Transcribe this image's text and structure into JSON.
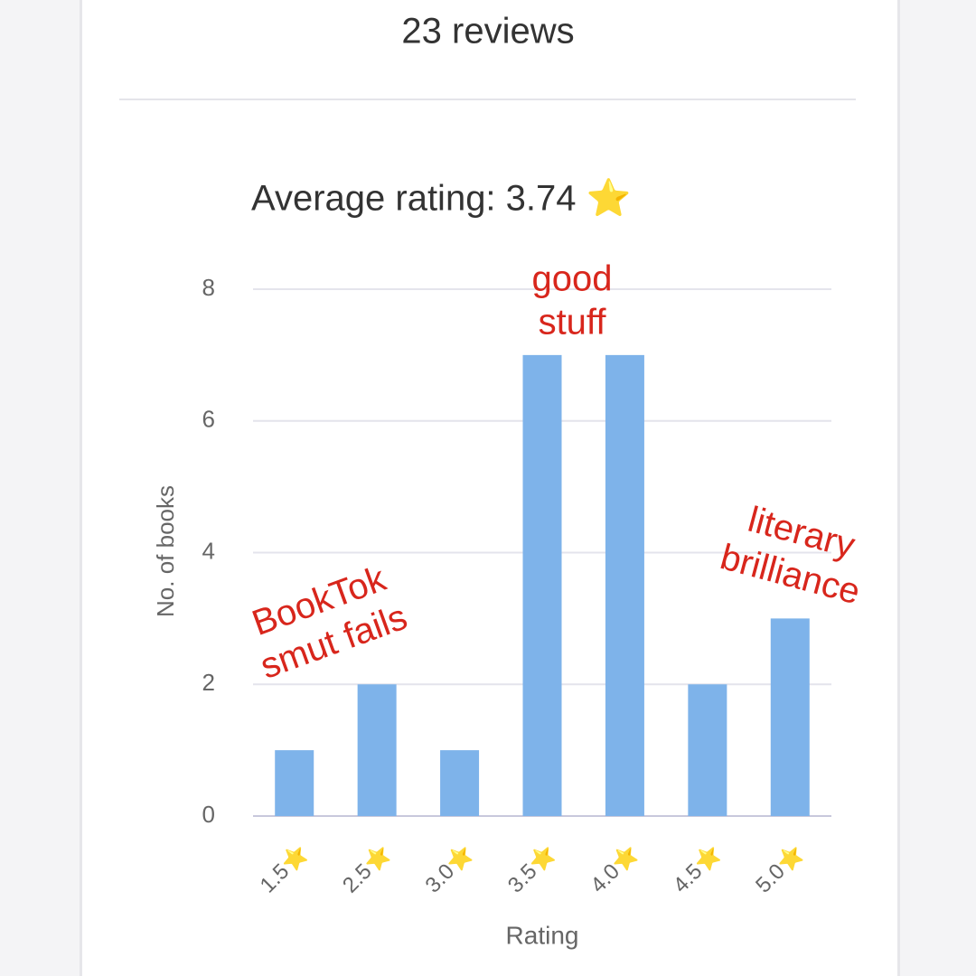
{
  "header": {
    "title": "23 reviews"
  },
  "chart_data": {
    "type": "bar",
    "title": "Average rating: 3.74 ⭐",
    "x_label": "Rating",
    "y_label": "No. of books",
    "categories": [
      "1.5⭐",
      "2.5⭐",
      "3.0⭐",
      "3.5⭐",
      "4.0⭐",
      "4.5⭐",
      "5.0⭐"
    ],
    "values": [
      1,
      2,
      1,
      7,
      7,
      2,
      3
    ],
    "color": "#7eb3ea",
    "ylim": [
      0,
      8
    ],
    "yticks": [
      0,
      2,
      4,
      6,
      8
    ],
    "grid": true,
    "annotations": [
      [
        "BookTok",
        "smut fails"
      ],
      [
        "good",
        "stuff"
      ],
      [
        "literary",
        "brilliance"
      ]
    ],
    "annotation_color": "#d8261c"
  }
}
